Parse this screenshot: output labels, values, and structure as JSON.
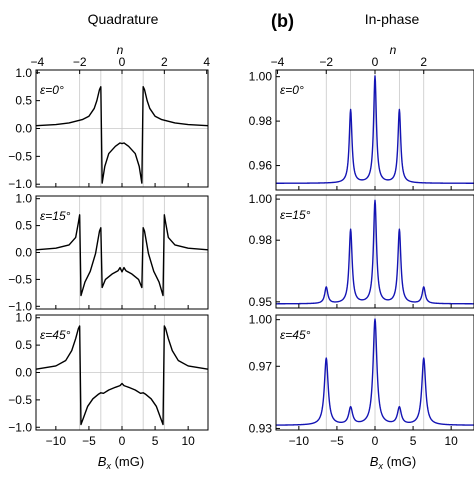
{
  "figure": {
    "left_title": "Quadrature",
    "right_title": "In-phase",
    "right_panel_tag": "(b)",
    "top_axis_label": "n",
    "bottom_axis_label_main": "B",
    "bottom_axis_label_sub": "x",
    "bottom_axis_label_unit": " (mG)"
  },
  "colors": {
    "quadrature_line": "#000000",
    "inphase_line": "#1414b4",
    "grid": "#c8c8c8",
    "frame": "#000000"
  },
  "chart_data": [
    {
      "type": "line",
      "column": "Quadrature",
      "annotation": "ε=0°",
      "xlim": [
        -13,
        13
      ],
      "ylim": [
        -1.05,
        1.05
      ],
      "xticks": [
        -10,
        -5,
        0,
        5,
        10
      ],
      "xtick_labels": [
        "−10",
        "−5",
        "0",
        "5",
        "10"
      ],
      "yticks": [
        -1.0,
        -0.5,
        0.0,
        0.5,
        1.0
      ],
      "ytick_labels": [
        "−1.0",
        "−0.5",
        "0.0",
        "0.5",
        "1.0"
      ],
      "top_ticks": [
        -4,
        -2,
        0,
        2,
        4
      ],
      "top_tick_labels": [
        "−4",
        "−2",
        "0",
        "2",
        "4"
      ],
      "grid_x": [
        -6.4,
        -3.2,
        0,
        3.2,
        6.4
      ],
      "x": [
        -13,
        -10,
        -8,
        -6,
        -5,
        -4.2,
        -3.8,
        -3.4,
        -3.2,
        -3.0,
        -2.6,
        -2.0,
        -1.0,
        -0.3,
        0,
        0.3,
        1.0,
        2.0,
        2.6,
        3.0,
        3.2,
        3.4,
        3.8,
        4.2,
        5,
        6,
        8,
        10,
        13
      ],
      "y": [
        0.05,
        0.07,
        0.1,
        0.16,
        0.22,
        0.36,
        0.5,
        0.7,
        0.75,
        -0.98,
        -0.68,
        -0.45,
        -0.32,
        -0.26,
        -0.27,
        -0.26,
        -0.32,
        -0.45,
        -0.68,
        -0.98,
        0.75,
        0.7,
        0.5,
        0.36,
        0.22,
        0.16,
        0.1,
        0.07,
        0.05
      ]
    },
    {
      "type": "line",
      "column": "Quadrature",
      "annotation": "ε=15°",
      "xlim": [
        -13,
        13
      ],
      "ylim": [
        -1.05,
        1.05
      ],
      "xticks": [
        -10,
        -5,
        0,
        5,
        10
      ],
      "xtick_labels": [
        "−10",
        "−5",
        "0",
        "5",
        "10"
      ],
      "yticks": [
        -1.0,
        -0.5,
        0.0,
        0.5,
        1.0
      ],
      "ytick_labels": [
        "−1.0",
        "−0.5",
        "0.0",
        "0.5",
        "1.0"
      ],
      "grid_x": [
        -6.4,
        -3.2,
        0,
        3.2,
        6.4
      ],
      "x": [
        -13,
        -10,
        -8,
        -7,
        -6.6,
        -6.4,
        -6.2,
        -5.6,
        -4.8,
        -4.0,
        -3.4,
        -3.2,
        -3.0,
        -2.5,
        -1.5,
        -0.6,
        -0.3,
        0,
        0.3,
        0.6,
        1.5,
        2.5,
        3.0,
        3.2,
        3.4,
        4.0,
        4.8,
        5.6,
        6.2,
        6.4,
        6.6,
        7,
        8,
        10,
        13
      ],
      "y": [
        0.05,
        0.08,
        0.14,
        0.28,
        0.55,
        0.7,
        -0.8,
        -0.55,
        -0.35,
        -0.02,
        0.4,
        0.46,
        -0.65,
        -0.5,
        -0.4,
        -0.34,
        -0.28,
        -0.36,
        -0.28,
        -0.34,
        -0.4,
        -0.5,
        -0.65,
        0.46,
        0.4,
        -0.02,
        -0.35,
        -0.55,
        -0.8,
        0.7,
        0.55,
        0.28,
        0.14,
        0.08,
        0.05
      ]
    },
    {
      "type": "line",
      "column": "Quadrature",
      "annotation": "ε=45°",
      "xlim": [
        -13,
        13
      ],
      "ylim": [
        -1.05,
        1.05
      ],
      "xticks": [
        -10,
        -5,
        0,
        5,
        10
      ],
      "xtick_labels": [
        "−10",
        "−5",
        "0",
        "5",
        "10"
      ],
      "yticks": [
        -1.0,
        -0.5,
        0.0,
        0.5,
        1.0
      ],
      "ytick_labels": [
        "−1.0",
        "−0.5",
        "0.0",
        "0.5",
        "1.0"
      ],
      "grid_x": [
        -6.4,
        -3.2,
        0,
        3.2,
        6.4
      ],
      "x": [
        -13,
        -10,
        -8.5,
        -7.6,
        -7.0,
        -6.6,
        -6.4,
        -6.2,
        -5.8,
        -5.2,
        -4.4,
        -3.6,
        -3.2,
        -2.8,
        -2.0,
        -1.0,
        -0.3,
        0,
        0.3,
        1.0,
        2.0,
        2.8,
        3.2,
        3.6,
        4.4,
        5.2,
        5.8,
        6.2,
        6.4,
        6.6,
        7.0,
        7.6,
        8.5,
        10,
        13
      ],
      "y": [
        0.06,
        0.12,
        0.22,
        0.4,
        0.62,
        0.8,
        0.85,
        -0.95,
        -0.82,
        -0.62,
        -0.48,
        -0.4,
        -0.37,
        -0.38,
        -0.32,
        -0.27,
        -0.24,
        -0.2,
        -0.24,
        -0.27,
        -0.32,
        -0.38,
        -0.37,
        -0.4,
        -0.48,
        -0.62,
        -0.82,
        -0.95,
        0.85,
        0.8,
        0.62,
        0.4,
        0.22,
        0.12,
        0.06
      ]
    },
    {
      "type": "line",
      "column": "In-phase",
      "annotation": "ε=0°",
      "xlim": [
        -13,
        13
      ],
      "ylim": [
        0.949,
        1.003
      ],
      "xticks": [
        -10,
        -5,
        0,
        5,
        10
      ],
      "xtick_labels": [
        "−10",
        "−5",
        "0",
        "5",
        "10"
      ],
      "yticks": [
        0.96,
        0.98,
        1.0
      ],
      "ytick_labels": [
        "0.96",
        "0.98",
        "1.00"
      ],
      "top_ticks": [
        -4,
        -2,
        0,
        2
      ],
      "top_tick_labels": [
        "−4",
        "−2",
        "0",
        "2"
      ],
      "grid_x": [
        -6.4,
        -3.2,
        0,
        3.2,
        6.4
      ],
      "peaks": [
        {
          "x": -3.2,
          "height": 0.985
        },
        {
          "x": 0,
          "height": 1.0
        },
        {
          "x": 3.2,
          "height": 0.985
        }
      ],
      "baseline": 0.952,
      "width": 0.22
    },
    {
      "type": "line",
      "column": "In-phase",
      "annotation": "ε=15°",
      "xlim": [
        -13,
        13
      ],
      "ylim": [
        0.947,
        1.002
      ],
      "xticks": [
        -10,
        -5,
        0,
        5,
        10
      ],
      "xtick_labels": [
        "−10",
        "−5",
        "0",
        "5",
        "10"
      ],
      "yticks": [
        0.95,
        0.98,
        1.0
      ],
      "ytick_labels": [
        "0.95",
        "0.98",
        "1.00"
      ],
      "grid_x": [
        -6.4,
        -3.2,
        0,
        3.2,
        6.4
      ],
      "peaks": [
        {
          "x": -6.4,
          "height": 0.957
        },
        {
          "x": -3.2,
          "height": 0.985
        },
        {
          "x": 0,
          "height": 0.999
        },
        {
          "x": 3.2,
          "height": 0.985
        },
        {
          "x": 6.4,
          "height": 0.957
        }
      ],
      "baseline": 0.949,
      "width": 0.24
    },
    {
      "type": "line",
      "column": "In-phase",
      "annotation": "ε=45°",
      "xlim": [
        -13,
        13
      ],
      "ylim": [
        0.929,
        1.003
      ],
      "xticks": [
        -10,
        -5,
        0,
        5,
        10
      ],
      "xtick_labels": [
        "−10",
        "−5",
        "0",
        "5",
        "10"
      ],
      "yticks": [
        0.93,
        0.97,
        1.0
      ],
      "ytick_labels": [
        "0.93",
        "0.97",
        "1.00"
      ],
      "grid_x": [
        -6.4,
        -3.2,
        0,
        3.2,
        6.4
      ],
      "peaks": [
        {
          "x": -6.4,
          "height": 0.975
        },
        {
          "x": -3.2,
          "height": 0.943
        },
        {
          "x": 0,
          "height": 1.0
        },
        {
          "x": 3.2,
          "height": 0.943
        },
        {
          "x": 6.4,
          "height": 0.975
        }
      ],
      "baseline": 0.932,
      "width": 0.3
    }
  ]
}
